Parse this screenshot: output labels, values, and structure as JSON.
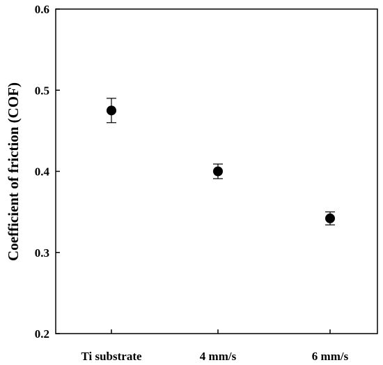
{
  "chart_data": {
    "type": "scatter",
    "title": "",
    "xlabel": "",
    "ylabel": "Coefficient of friction (COF)",
    "categories": [
      "Ti substrate",
      "4 mm/s",
      "6 mm/s"
    ],
    "series": [
      {
        "values": [
          0.475,
          0.4,
          0.342
        ],
        "error_low": [
          0.46,
          0.391,
          0.334
        ],
        "error_high": [
          0.49,
          0.409,
          0.35
        ]
      }
    ],
    "ylim": [
      0.2,
      0.6
    ],
    "yticks": [
      0.2,
      0.3,
      0.4,
      0.5,
      0.6
    ],
    "ytick_labels": [
      "0.2",
      "0.3",
      "0.4",
      "0.5",
      "0.6"
    ],
    "grid": false,
    "legend": "none",
    "marker_color": "#000000"
  }
}
